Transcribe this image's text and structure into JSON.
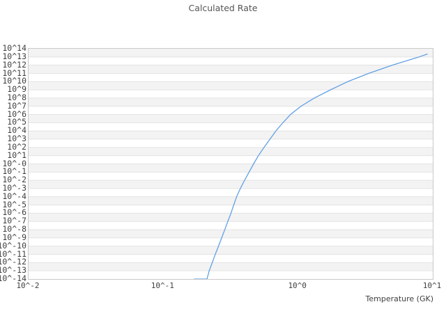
{
  "title": "Calculated Rate",
  "colors": {
    "background": "#ffffff",
    "band": "#f3f3f3",
    "gridline": "#e3e3e3",
    "frame": "#c9c9c9",
    "line": "#62a0e3",
    "title_text": "#555555",
    "tick_text": "#3e3e3e"
  },
  "chart_data": {
    "type": "line",
    "title": "Calculated Rate",
    "xlabel": "Temperature (GK)",
    "ylabel": "",
    "xscale": "log",
    "yscale": "log",
    "xlim": [
      0.01,
      10
    ],
    "ylim": [
      1e-14,
      100000000000000.0
    ],
    "grid": "horizontal",
    "background_bands": "alternating-gray-per-decade",
    "legend": "none",
    "line_color": "#62a0e3",
    "x_tick_labels": [
      "10^-2",
      "10^-1",
      "10^0",
      "10^1"
    ],
    "x_tick_values": [
      0.01,
      0.1,
      1,
      10
    ],
    "y_tick_labels": [
      "10^14",
      "10^13",
      "10^12",
      "10^11",
      "10^10",
      "10^9",
      "10^8",
      "10^7",
      "10^6",
      "10^5",
      "10^4",
      "10^3",
      "10^2",
      "10^1",
      "10^-0",
      "10^-1",
      "10^-2",
      "10^-3",
      "10^-4",
      "10^-5",
      "10^-6",
      "10^-7",
      "10^-8",
      "10^-9",
      "10^-10",
      "10^-11",
      "10^-12",
      "10^-13",
      "10^-14"
    ],
    "y_tick_exponents": [
      14,
      13,
      12,
      11,
      10,
      9,
      8,
      7,
      6,
      5,
      4,
      3,
      2,
      1,
      0,
      -1,
      -2,
      -3,
      -4,
      -5,
      -6,
      -7,
      -8,
      -9,
      -10,
      -11,
      -12,
      -13,
      -14
    ],
    "x": [
      0.17,
      0.211,
      0.219,
      0.231,
      0.243,
      0.257,
      0.271,
      0.286,
      0.301,
      0.318,
      0.333,
      0.35,
      0.373,
      0.401,
      0.433,
      0.468,
      0.508,
      0.559,
      0.619,
      0.685,
      0.772,
      0.879,
      1.05,
      1.32,
      1.74,
      2.34,
      3.34,
      5.01,
      7.89,
      9.1
    ],
    "y": [
      1e-14,
      1e-14,
      1e-13,
      1e-12,
      1e-11,
      1e-10,
      1e-09,
      1e-08,
      1e-07,
      1e-06,
      1e-05,
      0.0001,
      0.001,
      0.01,
      0.1,
      1,
      10,
      100,
      1000,
      10000.0,
      100000.0,
      1000000.0,
      10000000.0,
      100000000.0,
      1000000000.0,
      10000000000.0,
      100000000000.0,
      1000000000000.0,
      10000000000000.0,
      22000000000000.0
    ]
  }
}
